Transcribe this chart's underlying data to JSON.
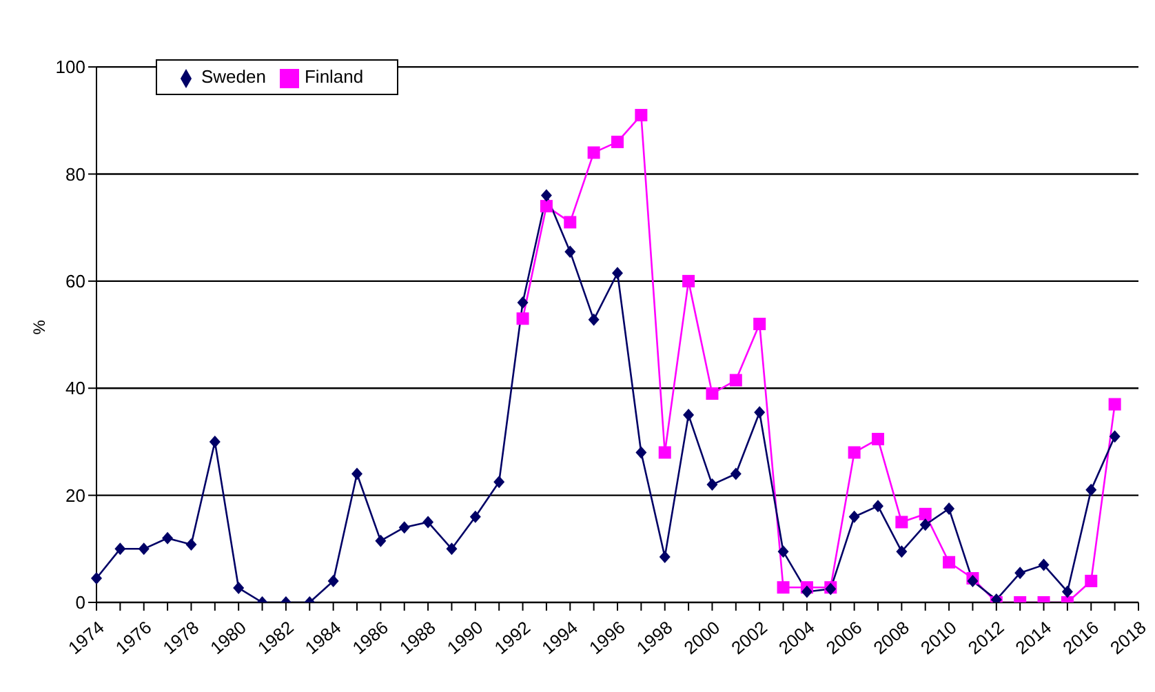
{
  "chart_data": {
    "type": "line",
    "ylabel": "%",
    "categories": [
      "1974",
      null,
      "1976",
      null,
      "1978",
      null,
      "1980",
      null,
      "1982",
      null,
      "1984",
      null,
      "1986",
      null,
      "1988",
      null,
      "1990",
      null,
      "1992",
      null,
      "1994",
      null,
      "1996",
      null,
      "1998",
      null,
      "2000",
      null,
      "2002",
      null,
      "2004",
      null,
      "2006",
      null,
      "2008",
      null,
      "2010",
      null,
      "2012",
      null,
      "2014",
      null,
      "2016",
      null,
      "2018"
    ],
    "series": [
      {
        "name": "Sweden",
        "color": "#000066",
        "marker": "diamond",
        "values": [
          4.5,
          10,
          10,
          12,
          10.8,
          30,
          2.7,
          0,
          0,
          0,
          4,
          24,
          11.5,
          14,
          15,
          10,
          16,
          22.5,
          56,
          76,
          65.5,
          52.8,
          61.5,
          28,
          8.5,
          35,
          22,
          24,
          35.5,
          9.5,
          2,
          2.5,
          16,
          18,
          9.5,
          14.5,
          17.5,
          4,
          0.5,
          5.5,
          7,
          2,
          21,
          31,
          null
        ]
      },
      {
        "name": "Finland",
        "color": "#ff00ff",
        "marker": "square",
        "values": [
          null,
          null,
          null,
          null,
          null,
          null,
          null,
          null,
          null,
          null,
          null,
          null,
          null,
          null,
          null,
          null,
          null,
          null,
          53,
          74,
          71,
          84,
          86,
          91,
          28,
          60,
          39,
          41.5,
          52,
          2.8,
          2.8,
          2.8,
          28,
          30.5,
          15,
          16.5,
          7.5,
          4.5,
          0,
          0,
          0,
          0,
          4,
          37,
          null
        ]
      }
    ],
    "ylim": [
      0,
      100
    ],
    "yticks": [
      0,
      20,
      40,
      60,
      80,
      100
    ],
    "grid": "y",
    "legend": "top left"
  }
}
